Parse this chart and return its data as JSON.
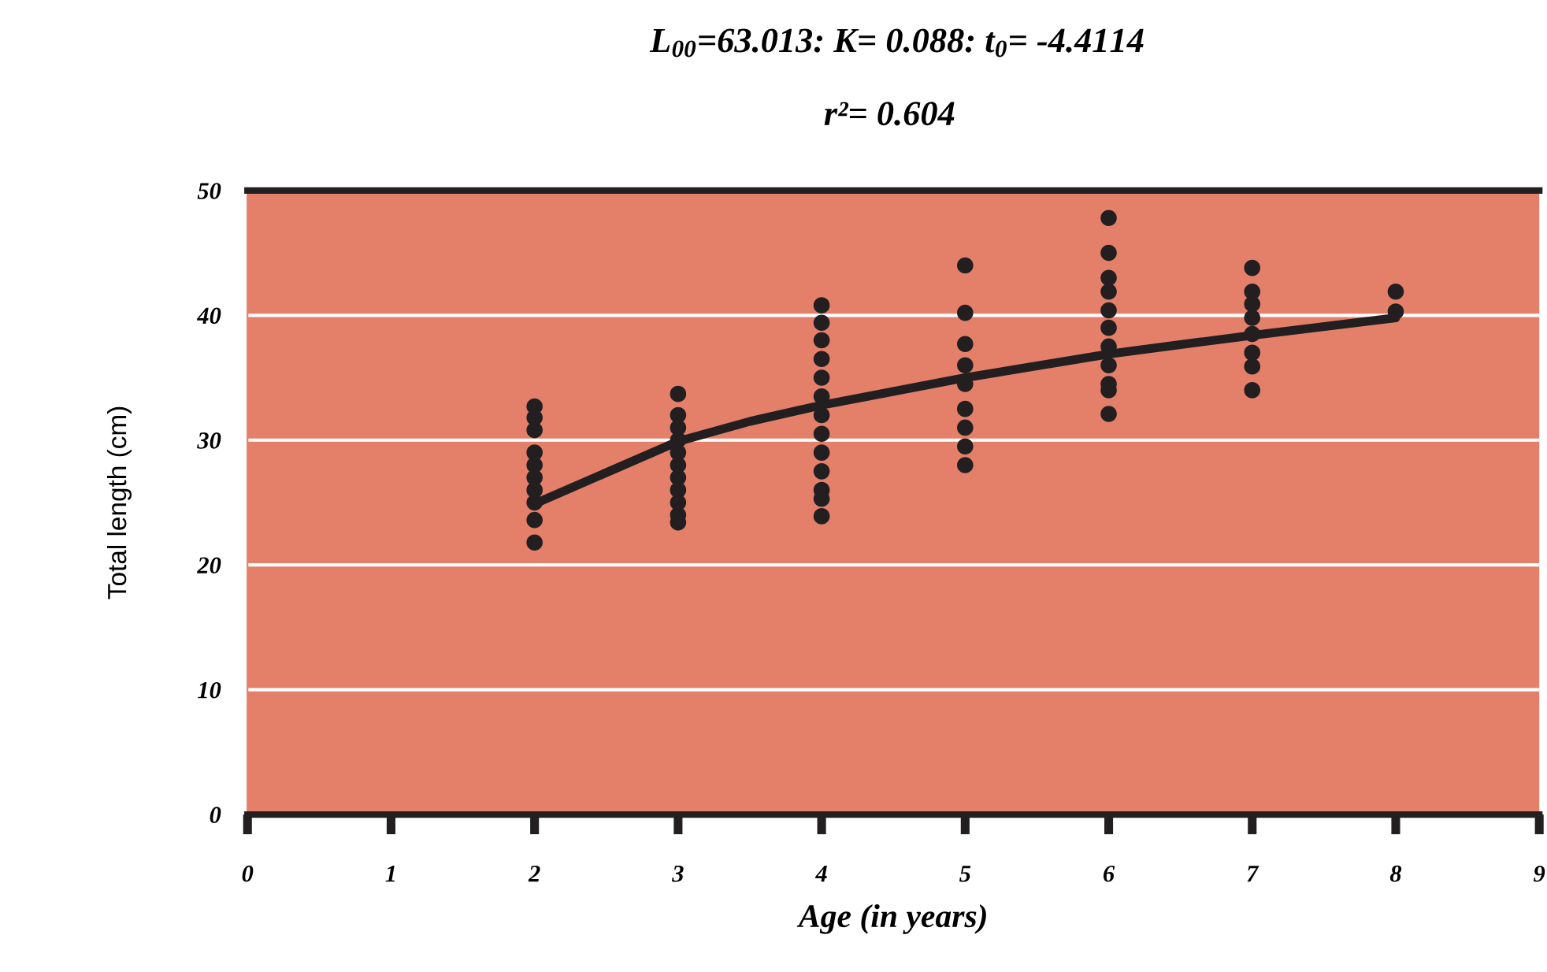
{
  "chart_data": {
    "type": "scatter",
    "title": "L$_{00}$=63.013: K= 0.088: t$_{0}$= -4.4114",
    "subtitle": "r²= 0.604",
    "xlabel": "Age (in years)",
    "ylabel": "Total length (cm)",
    "xlim": [
      0,
      9
    ],
    "xticks": [
      0,
      1,
      2,
      3,
      4,
      5,
      6,
      7,
      8,
      9
    ],
    "ylim": [
      0,
      50
    ],
    "yticks": [
      0,
      10,
      20,
      30,
      40,
      50
    ],
    "grid": "y",
    "series": [
      {
        "marker": "circle",
        "color": "#231f20",
        "x": [
          2,
          2,
          2,
          2,
          2,
          2,
          2,
          2,
          2,
          2,
          3,
          3,
          3,
          3,
          3,
          3,
          3,
          3,
          3,
          3,
          3,
          4,
          4,
          4,
          4,
          4,
          4,
          4,
          4,
          4,
          4,
          4,
          4,
          4,
          5,
          5,
          5,
          5,
          5,
          5,
          5,
          5,
          5,
          6,
          6,
          6,
          6,
          6,
          6,
          6,
          6,
          6,
          6,
          6,
          7,
          7,
          7,
          7,
          7,
          7,
          7,
          7,
          8,
          8
        ],
        "values": [
          32.7,
          31.8,
          30.8,
          29,
          28,
          27,
          26,
          25,
          23.6,
          21.8,
          33.7,
          32,
          31,
          30,
          29,
          28,
          27,
          26,
          25,
          24,
          23.4,
          40.8,
          39.4,
          38,
          36.5,
          35,
          33.5,
          32,
          30.5,
          29,
          27.5,
          26,
          25.3,
          23.9,
          44,
          40.2,
          37.7,
          36,
          34.5,
          32.5,
          31,
          29.5,
          28,
          47.8,
          45,
          43,
          41.9,
          40.4,
          39,
          37.5,
          36,
          34.5,
          34,
          32.1,
          43.8,
          41.9,
          40.9,
          39.8,
          38.5,
          37,
          35.9,
          34,
          41.9,
          40.3
        ]
      },
      {
        "type": "line",
        "color": "#231f20",
        "x": [
          2,
          3,
          3.5,
          4,
          5,
          6,
          7,
          8
        ],
        "values": [
          24.9,
          29.9,
          31.5,
          32.8,
          35.0,
          36.9,
          38.4,
          39.8
        ]
      }
    ]
  }
}
